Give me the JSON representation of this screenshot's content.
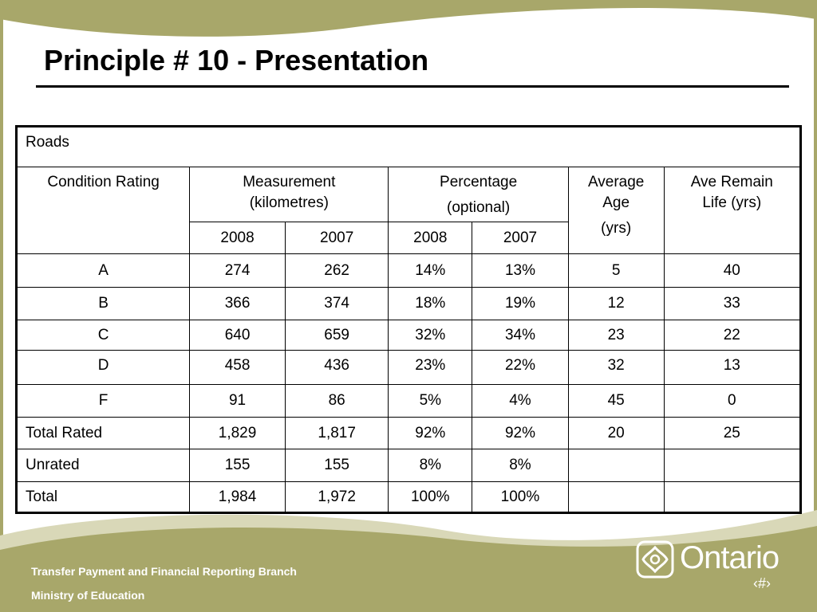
{
  "slide": {
    "title": "Principle # 10 - Presentation"
  },
  "table": {
    "caption": "Roads",
    "headers": {
      "condition": "Condition Rating",
      "measurement_line1": "Measurement",
      "measurement_line2": "(kilometres)",
      "percentage_line1": "Percentage",
      "percentage_line2": "(optional)",
      "avg_age_line1": "Average",
      "avg_age_line2": "Age",
      "avg_age_line3": "(yrs)",
      "remain_line1": "Ave Remain",
      "remain_line2": "Life (yrs)",
      "m2008": "2008",
      "m2007": "2007",
      "p2008": "2008",
      "p2007": "2007"
    },
    "rows": [
      {
        "rating": "A",
        "m2008": "274",
        "m2007": "262",
        "p2008": "14%",
        "p2007": "13%",
        "age": "5",
        "remain": "40"
      },
      {
        "rating": "B",
        "m2008": "366",
        "m2007": "374",
        "p2008": "18%",
        "p2007": "19%",
        "age": "12",
        "remain": "33"
      },
      {
        "rating": "C",
        "m2008": "640",
        "m2007": "659",
        "p2008": "32%",
        "p2007": "34%",
        "age": "23",
        "remain": "22"
      },
      {
        "rating": "D",
        "m2008": "458",
        "m2007": "436",
        "p2008": "23%",
        "p2007": "22%",
        "age": "32",
        "remain": "13"
      },
      {
        "rating": "F",
        "m2008": "91",
        "m2007": "86",
        "p2008": "5%",
        "p2007": "4%",
        "age": "45",
        "remain": "0"
      },
      {
        "rating": "Total Rated",
        "m2008": "1,829",
        "m2007": "1,817",
        "p2008": "92%",
        "p2007": "92%",
        "age": "20",
        "remain": "25"
      },
      {
        "rating": "Unrated",
        "m2008": "155",
        "m2007": "155",
        "p2008": "8%",
        "p2007": "8%",
        "age": "",
        "remain": ""
      },
      {
        "rating": "Total",
        "m2008": "1,984",
        "m2007": "1,972",
        "p2008": "100%",
        "p2007": "100%",
        "age": "",
        "remain": ""
      }
    ]
  },
  "footer": {
    "branch": "Transfer Payment and Financial Reporting Branch",
    "ministry": "Ministry of Education",
    "brand": "Ontario",
    "page_number": "‹#›"
  },
  "colors": {
    "olive": "#a8a76a",
    "olive_light": "#d9d8b8",
    "text": "#000000"
  }
}
